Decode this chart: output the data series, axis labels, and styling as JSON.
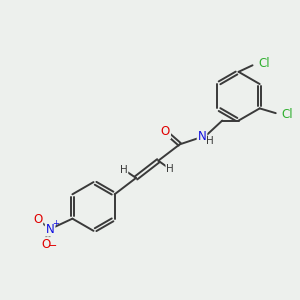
{
  "bg_color": "#edf0ed",
  "bond_color": "#3a3a3a",
  "bond_width": 1.4,
  "atom_colors": {
    "O": "#e00000",
    "N": "#1010e0",
    "Cl": "#30b030",
    "H": "#3a3a3a"
  },
  "font_size": 8.5,
  "fig_size": [
    3.0,
    3.0
  ],
  "dpi": 100,
  "xlim": [
    0,
    10
  ],
  "ylim": [
    0,
    10
  ]
}
